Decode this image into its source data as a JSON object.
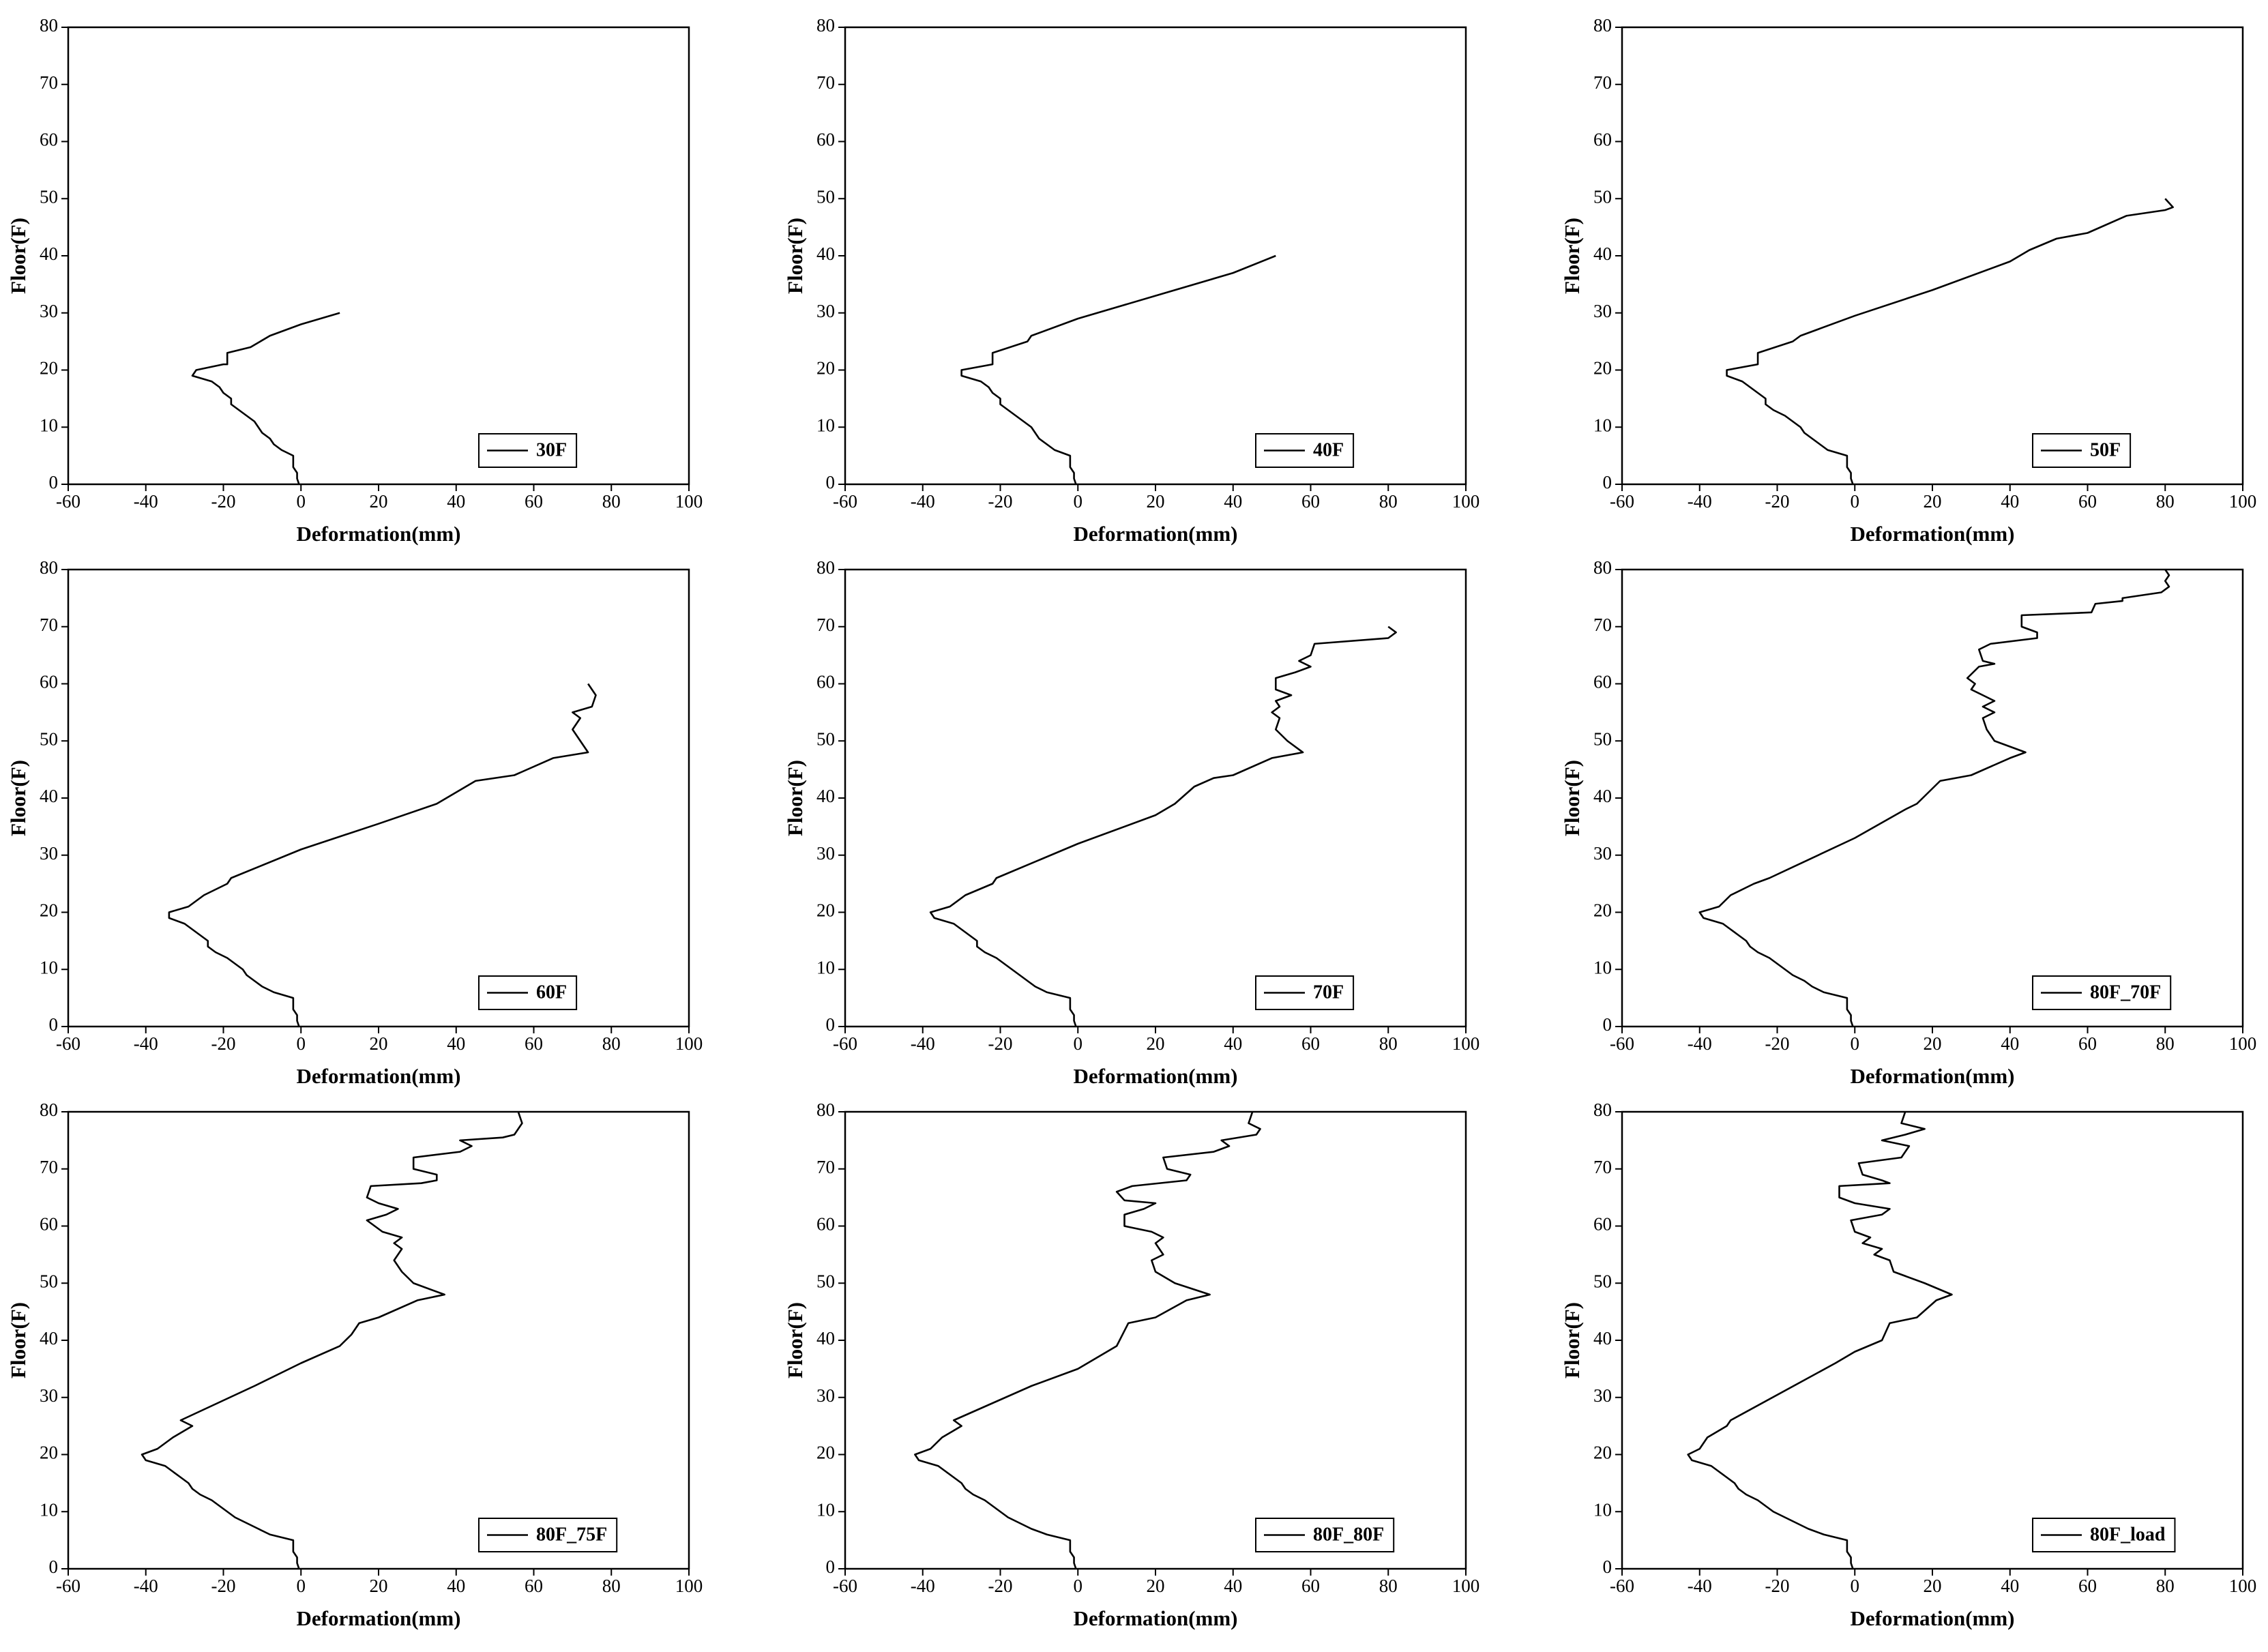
{
  "chart_data": [
    {
      "type": "line",
      "xlabel": "Deformation(mm)",
      "ylabel": "Floor(F)",
      "xlim": [
        -60,
        100
      ],
      "xticks": [
        -60,
        -40,
        -20,
        0,
        20,
        40,
        60,
        80,
        100
      ],
      "ylim": [
        0,
        80
      ],
      "yticks": [
        0,
        10,
        20,
        30,
        40,
        50,
        60,
        70,
        80
      ],
      "legend": "lower right",
      "series": [
        {
          "name": "30F",
          "color": "#000000",
          "x": [
            -0.5,
            -1,
            -1,
            -2,
            -2,
            -2,
            -5,
            -7,
            -8,
            -10,
            -11,
            -12,
            -14,
            -16,
            -18,
            -18,
            -20,
            -21,
            -23,
            -28,
            -27,
            -20,
            -19,
            -19,
            -13,
            -8,
            0,
            10
          ],
          "values": [
            0,
            1,
            2,
            3,
            4,
            5,
            6,
            7,
            8,
            9,
            10,
            11,
            12,
            13,
            14,
            15,
            16,
            17,
            18,
            19,
            20,
            21,
            21,
            23,
            24,
            26,
            28,
            30
          ]
        }
      ]
    },
    {
      "type": "line",
      "xlabel": "Deformation(mm)",
      "ylabel": "Floor(F)",
      "xlim": [
        -60,
        100
      ],
      "xticks": [
        -60,
        -40,
        -20,
        0,
        20,
        40,
        60,
        80,
        100
      ],
      "ylim": [
        0,
        80
      ],
      "yticks": [
        0,
        10,
        20,
        30,
        40,
        50,
        60,
        70,
        80
      ],
      "legend": "lower right",
      "series": [
        {
          "name": "40F",
          "color": "#000000",
          "x": [
            -0.5,
            -1,
            -1,
            -2,
            -2,
            -2,
            -6,
            -8,
            -10,
            -11,
            -12,
            -14,
            -16,
            -18,
            -20,
            -20,
            -22,
            -23,
            -25,
            -30,
            -30,
            -22,
            -22,
            -13,
            -12,
            0,
            20,
            40,
            51
          ],
          "values": [
            0,
            1,
            2,
            3,
            4,
            5,
            6,
            7,
            8,
            9,
            10,
            11,
            12,
            13,
            14,
            15,
            16,
            17,
            18,
            19,
            20,
            21,
            23,
            25,
            26,
            29,
            33,
            37,
            40
          ]
        }
      ]
    },
    {
      "type": "line",
      "xlabel": "Deformation(mm)",
      "ylabel": "Floor(F)",
      "xlim": [
        -60,
        100
      ],
      "xticks": [
        -60,
        -40,
        -20,
        0,
        20,
        40,
        60,
        80,
        100
      ],
      "ylim": [
        0,
        80
      ],
      "yticks": [
        0,
        10,
        20,
        30,
        40,
        50,
        60,
        70,
        80
      ],
      "legend": "lower right",
      "series": [
        {
          "name": "50F",
          "color": "#000000",
          "x": [
            -0.5,
            -1,
            -1,
            -2,
            -2,
            -2,
            -7,
            -9,
            -11,
            -13,
            -14,
            -16,
            -18,
            -21,
            -23,
            -23,
            -25,
            -27,
            -29,
            -33,
            -33,
            -25,
            -25,
            -16,
            -14,
            0,
            20,
            40,
            45,
            52,
            60,
            70,
            80,
            82,
            80
          ],
          "values": [
            0,
            1,
            2,
            3,
            4,
            5,
            6,
            7,
            8,
            9,
            10,
            11,
            12,
            13,
            14,
            15,
            16,
            17,
            18,
            19,
            20,
            21,
            23,
            25,
            26,
            29.5,
            34,
            39,
            41,
            43,
            44,
            47,
            48,
            48.5,
            50
          ]
        }
      ]
    },
    {
      "type": "line",
      "xlabel": "Deformation(mm)",
      "ylabel": "Floor(F)",
      "xlim": [
        -60,
        100
      ],
      "xticks": [
        -60,
        -40,
        -20,
        0,
        20,
        40,
        60,
        80,
        100
      ],
      "ylim": [
        0,
        80
      ],
      "yticks": [
        0,
        10,
        20,
        30,
        40,
        50,
        60,
        70,
        80
      ],
      "legend": "lower right",
      "series": [
        {
          "name": "60F",
          "color": "#000000",
          "x": [
            -0.5,
            -1,
            -1,
            -2,
            -2,
            -2,
            -7,
            -10,
            -12,
            -14,
            -15,
            -17,
            -19,
            -22,
            -24,
            -24,
            -26,
            -28,
            -30,
            -34,
            -34,
            -29,
            -25,
            -19,
            -18,
            0,
            20,
            35,
            45,
            55,
            65,
            74,
            70,
            72,
            70,
            75,
            76,
            74
          ],
          "values": [
            0,
            1,
            2,
            3,
            4,
            5,
            6,
            7,
            8,
            9,
            10,
            11,
            12,
            13,
            14,
            15,
            16,
            17,
            18,
            19,
            20,
            21,
            23,
            25,
            26,
            31,
            35.5,
            39,
            43,
            44,
            47,
            48,
            52,
            54,
            55,
            56,
            58,
            60
          ]
        }
      ]
    },
    {
      "type": "line",
      "xlabel": "Deformation(mm)",
      "ylabel": "Floor(F)",
      "xlim": [
        -60,
        100
      ],
      "xticks": [
        -60,
        -40,
        -20,
        0,
        20,
        40,
        60,
        80,
        100
      ],
      "ylim": [
        0,
        80
      ],
      "yticks": [
        0,
        10,
        20,
        30,
        40,
        50,
        60,
        70,
        80
      ],
      "legend": "lower right",
      "series": [
        {
          "name": "70F",
          "color": "#000000",
          "x": [
            -0.5,
            -1,
            -1,
            -2,
            -2,
            -2,
            -8,
            -11,
            -13,
            -15,
            -17,
            -19,
            -21,
            -24,
            -26,
            -26,
            -28,
            -30,
            -32,
            -37,
            -38,
            -33,
            -29,
            -22,
            -21,
            0,
            20,
            25,
            30,
            35,
            40,
            50,
            58,
            54,
            51,
            52,
            50,
            52,
            51,
            55,
            51,
            51,
            56,
            60,
            57,
            60,
            61,
            80,
            82,
            80
          ],
          "values": [
            0,
            1,
            2,
            3,
            4,
            5,
            6,
            7,
            8,
            9,
            10,
            11,
            12,
            13,
            14,
            15,
            16,
            17,
            18,
            19,
            20,
            21,
            23,
            25,
            26,
            32,
            37,
            39,
            42,
            43.5,
            44,
            47,
            48,
            50,
            52,
            54,
            55,
            56,
            57,
            58,
            59,
            61,
            62,
            63,
            64,
            65,
            67,
            68,
            69,
            70
          ]
        }
      ]
    },
    {
      "type": "line",
      "xlabel": "Deformation(mm)",
      "ylabel": "Floor(F)",
      "xlim": [
        -60,
        100
      ],
      "xticks": [
        -60,
        -40,
        -20,
        0,
        20,
        40,
        60,
        80,
        100
      ],
      "ylim": [
        0,
        80
      ],
      "yticks": [
        0,
        10,
        20,
        30,
        40,
        50,
        60,
        70,
        80
      ],
      "legend": "lower right",
      "series": [
        {
          "name": "80F_70F",
          "color": "#000000",
          "x": [
            -0.5,
            -1,
            -1,
            -2,
            -2,
            -2,
            -8,
            -11,
            -13,
            -16,
            -18,
            -20,
            -22,
            -25,
            -27,
            -28,
            -30,
            -32,
            -34,
            -39,
            -40,
            -35,
            -32,
            -26,
            -22,
            0,
            13,
            16,
            22,
            30,
            40,
            44,
            36,
            34,
            33,
            36,
            33,
            36,
            33,
            30,
            31,
            29,
            32,
            36,
            33,
            32,
            35,
            47,
            47,
            43,
            43,
            61,
            62,
            69,
            69,
            79,
            81,
            80,
            81,
            80
          ],
          "values": [
            0,
            1,
            2,
            3,
            4,
            5,
            6,
            7,
            8,
            9,
            10,
            11,
            12,
            13,
            14,
            15,
            16,
            17,
            18,
            19,
            20,
            21,
            23,
            25,
            26,
            33,
            38,
            39,
            43,
            44,
            47,
            48,
            50,
            52,
            54,
            55,
            56,
            57,
            58,
            59,
            60,
            61,
            63,
            63.5,
            64,
            66,
            67,
            68,
            69,
            70,
            72,
            72.5,
            74,
            74.5,
            75,
            76,
            77,
            78,
            79,
            80
          ]
        }
      ]
    },
    {
      "type": "line",
      "xlabel": "Deformation(mm)",
      "ylabel": "Floor(F)",
      "xlim": [
        -60,
        100
      ],
      "xticks": [
        -60,
        -40,
        -20,
        0,
        20,
        40,
        60,
        80,
        100
      ],
      "ylim": [
        0,
        80
      ],
      "yticks": [
        0,
        10,
        20,
        30,
        40,
        50,
        60,
        70,
        80
      ],
      "legend": "lower right",
      "series": [
        {
          "name": "80F_75F",
          "color": "#000000",
          "x": [
            -0.5,
            -1,
            -1,
            -2,
            -2,
            -2,
            -8,
            -11,
            -14,
            -17,
            -19,
            -21,
            -23,
            -26,
            -28,
            -29,
            -31,
            -33,
            -35,
            -40,
            -41,
            -37,
            -33,
            -28,
            -31,
            -12,
            0,
            10,
            13,
            15,
            20,
            30,
            37,
            29,
            26,
            24,
            26,
            24,
            26,
            21,
            17,
            22,
            25,
            20,
            17,
            18,
            31,
            35,
            35,
            29,
            29,
            41,
            44,
            41,
            52,
            55,
            57,
            56
          ],
          "values": [
            0,
            1,
            2,
            3,
            4,
            5,
            6,
            7,
            8,
            9,
            10,
            11,
            12,
            13,
            14,
            15,
            16,
            17,
            18,
            19,
            20,
            21,
            23,
            25,
            26,
            32,
            36,
            39,
            41,
            43,
            44,
            47,
            48,
            50,
            52,
            54,
            56,
            57,
            58,
            59,
            61,
            62,
            63,
            64,
            65,
            67,
            67.5,
            68,
            69,
            70,
            72,
            73,
            74,
            75,
            75.5,
            76,
            78,
            80
          ]
        }
      ]
    },
    {
      "type": "line",
      "xlabel": "Deformation(mm)",
      "ylabel": "Floor(F)",
      "xlim": [
        -60,
        100
      ],
      "xticks": [
        -60,
        -40,
        -20,
        0,
        20,
        40,
        60,
        80,
        100
      ],
      "ylim": [
        0,
        80
      ],
      "yticks": [
        0,
        10,
        20,
        30,
        40,
        50,
        60,
        70,
        80
      ],
      "legend": "lower right",
      "series": [
        {
          "name": "80F_80F",
          "color": "#000000",
          "x": [
            -0.5,
            -1,
            -1,
            -2,
            -2,
            -2,
            -8,
            -12,
            -15,
            -18,
            -20,
            -22,
            -24,
            -27,
            -29,
            -30,
            -32,
            -34,
            -36,
            -41,
            -42,
            -38,
            -35,
            -30,
            -32,
            -12,
            0,
            10,
            13,
            20,
            28,
            34,
            25,
            20,
            19,
            22,
            20,
            22,
            19,
            12,
            12,
            17,
            20,
            12,
            10,
            14,
            28,
            29,
            23,
            22,
            35,
            39,
            37,
            46,
            47,
            44,
            45
          ],
          "values": [
            0,
            1,
            2,
            3,
            4,
            5,
            6,
            7,
            8,
            9,
            10,
            11,
            12,
            13,
            14,
            15,
            16,
            17,
            18,
            19,
            20,
            21,
            23,
            25,
            26,
            32,
            35,
            39,
            43,
            44,
            47,
            48,
            50,
            52,
            54,
            55,
            57,
            58,
            59,
            60,
            62,
            63,
            64,
            64.5,
            66,
            67,
            68,
            69,
            70,
            72,
            73,
            74,
            75,
            76,
            77,
            78,
            80
          ]
        }
      ]
    },
    {
      "type": "line",
      "xlabel": "Deformation(mm)",
      "ylabel": "Floor(F)",
      "xlim": [
        -60,
        100
      ],
      "xticks": [
        -60,
        -40,
        -20,
        0,
        20,
        40,
        60,
        80,
        100
      ],
      "ylim": [
        0,
        80
      ],
      "yticks": [
        0,
        10,
        20,
        30,
        40,
        50,
        60,
        70,
        80
      ],
      "legend": "lower right",
      "series": [
        {
          "name": "80F_load",
          "color": "#000000",
          "x": [
            -0.5,
            -1,
            -1,
            -2,
            -2,
            -2,
            -8,
            -12,
            -15,
            -18,
            -21,
            -23,
            -25,
            -28,
            -30,
            -31,
            -33,
            -35,
            -37,
            -42,
            -43,
            -40,
            -38,
            -33,
            -32,
            -5,
            0,
            7,
            9,
            16,
            21,
            25,
            18,
            10,
            9,
            5,
            7,
            2,
            4,
            0,
            -1,
            7,
            9,
            0,
            -4,
            -4,
            9,
            7,
            2,
            1,
            12,
            14,
            7,
            13,
            18,
            12,
            13
          ],
          "values": [
            0,
            1,
            2,
            3,
            4,
            5,
            6,
            7,
            8,
            9,
            10,
            11,
            12,
            13,
            14,
            15,
            16,
            17,
            18,
            19,
            20,
            21,
            23,
            25,
            26,
            36,
            38,
            40,
            43,
            44,
            47,
            48,
            50,
            52,
            54,
            55,
            56,
            57,
            58,
            59,
            61,
            62,
            63,
            64,
            65,
            67,
            67.5,
            68,
            69,
            71,
            72,
            74,
            75,
            76,
            77,
            78,
            80
          ]
        }
      ]
    }
  ]
}
